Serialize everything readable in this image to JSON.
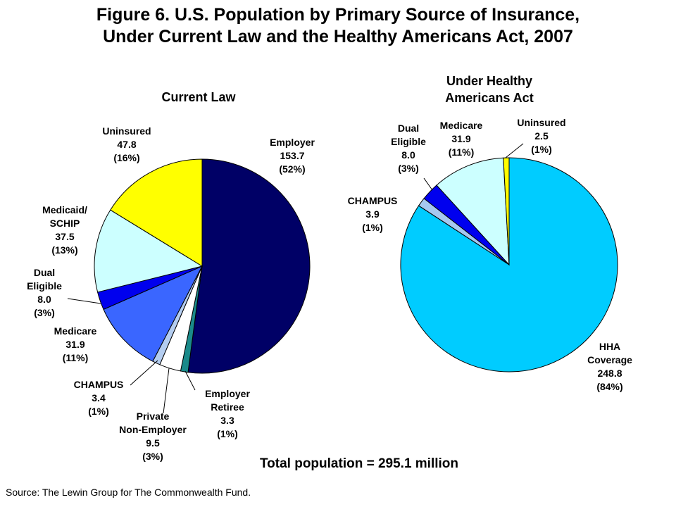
{
  "title_line1": "Figure 6. U.S. Population by Primary Source of Insurance,",
  "title_line2": "Under Current Law and the Healthy Americans Act, 2007",
  "total_text": "Total population = 295.1 million",
  "source_text": "Source: The Lewin Group for The Commonwealth Fund.",
  "chart_data": [
    {
      "type": "pie",
      "title": "Current Law",
      "slices": [
        {
          "name": "Employer",
          "value": 153.7,
          "percent": "(52%)",
          "color": "#000066"
        },
        {
          "name": "Employer Retiree",
          "value": 3.3,
          "percent": "(1%)",
          "color": "#1a8a8a"
        },
        {
          "name": "Private Non-Employer",
          "value": 9.5,
          "percent": "(3%)",
          "color": "#ffffff"
        },
        {
          "name": "CHAMPUS",
          "value": 3.4,
          "percent": "(1%)",
          "color": "#b4cdf0"
        },
        {
          "name": "Medicare",
          "value": 31.9,
          "percent": "(11%)",
          "color": "#3a66ff"
        },
        {
          "name": "Dual Eligible",
          "value": 8.0,
          "percent": "(3%)",
          "color": "#0000ee"
        },
        {
          "name": "Medicaid/ SCHIP",
          "value": 37.5,
          "percent": "(13%)",
          "color": "#ccffff"
        },
        {
          "name": "Uninsured",
          "value": 47.8,
          "percent": "(16%)",
          "color": "#ffff00"
        }
      ]
    },
    {
      "type": "pie",
      "title": "Under Healthy Americans Act",
      "slices": [
        {
          "name": "HHA Coverage",
          "value": 248.8,
          "percent": "(84%)",
          "color": "#00ccff"
        },
        {
          "name": "CHAMPUS",
          "value": 3.9,
          "percent": "(1%)",
          "color": "#a6c8f0"
        },
        {
          "name": "Dual Eligible",
          "value": 8.0,
          "percent": "(3%)",
          "color": "#0000ee"
        },
        {
          "name": "Medicare",
          "value": 31.9,
          "percent": "(11%)",
          "color": "#ccffff"
        },
        {
          "name": "Uninsured",
          "value": 2.5,
          "percent": "(1%)",
          "color": "#ffff00"
        }
      ]
    }
  ]
}
